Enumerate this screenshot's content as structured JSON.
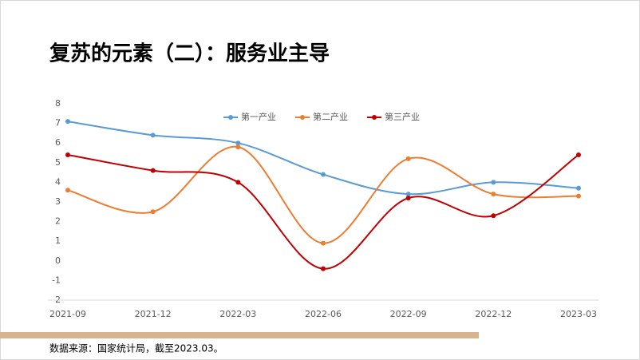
{
  "chart_data": {
    "type": "line",
    "title": "复苏的元素（二）：服务业主导",
    "source": "数据来源：国家统计局，截至2023.03。",
    "categories": [
      "2021-09",
      "2021-12",
      "2022-03",
      "2022-06",
      "2022-09",
      "2022-12",
      "2023-03"
    ],
    "series": [
      {
        "name": "第一产业",
        "color": "#5b9bd5",
        "values": [
          7.1,
          6.4,
          6.0,
          4.4,
          3.4,
          4.0,
          3.7
        ]
      },
      {
        "name": "第二产业",
        "color": "#ed7d31",
        "values": [
          3.6,
          2.5,
          5.8,
          0.9,
          5.2,
          3.4,
          3.3
        ]
      },
      {
        "name": "第三产业",
        "color": "#c00000",
        "values": [
          5.4,
          4.6,
          4.0,
          -0.4,
          3.2,
          2.3,
          5.4
        ]
      }
    ],
    "ylim": [
      -2,
      8
    ],
    "yticks": [
      -2,
      -1,
      0,
      1,
      2,
      3,
      4,
      5,
      6,
      7,
      8
    ],
    "grid": false,
    "legend": "top"
  }
}
